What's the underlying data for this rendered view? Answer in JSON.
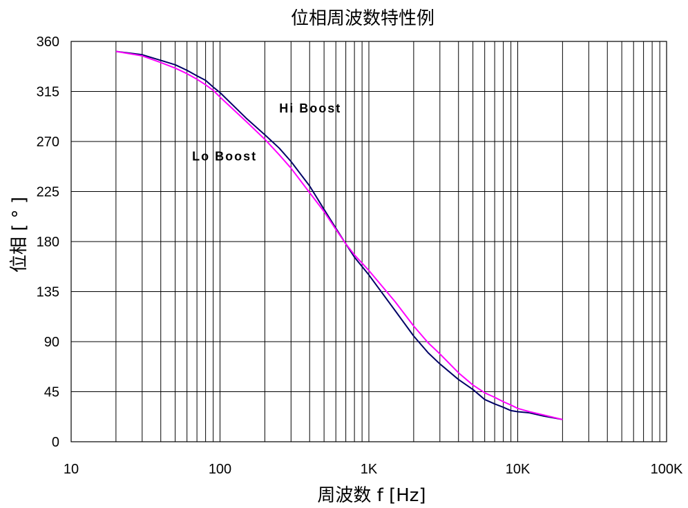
{
  "chart_data": {
    "type": "line",
    "title": "位相周波数特性例",
    "xlabel": "周波数 f [Hz]",
    "ylabel": "位相 [ ° ]",
    "xscale": "log",
    "xlim": [
      10,
      100000
    ],
    "ylim": [
      0,
      360
    ],
    "xticks": [
      {
        "value": 10,
        "label": "10"
      },
      {
        "value": 100,
        "label": "100"
      },
      {
        "value": 1000,
        "label": "1K"
      },
      {
        "value": 10000,
        "label": "10K"
      },
      {
        "value": 100000,
        "label": "100K"
      }
    ],
    "yticks": [
      {
        "value": 0,
        "label": "0"
      },
      {
        "value": 45,
        "label": "45"
      },
      {
        "value": 90,
        "label": "90"
      },
      {
        "value": 135,
        "label": "135"
      },
      {
        "value": 180,
        "label": "180"
      },
      {
        "value": 225,
        "label": "225"
      },
      {
        "value": 270,
        "label": "270"
      },
      {
        "value": 315,
        "label": "315"
      },
      {
        "value": 360,
        "label": "360"
      }
    ],
    "grid": true,
    "annotations": [
      {
        "text": "Hi Boost",
        "x": 250,
        "y": 296
      },
      {
        "text": "Lo Boost",
        "x": 65,
        "y": 253
      }
    ],
    "series": [
      {
        "name": "Hi Boost",
        "color": "#000066",
        "x": [
          20,
          30,
          40,
          50,
          60,
          70,
          80,
          90,
          100,
          150,
          200,
          250,
          300,
          400,
          500,
          600,
          700,
          800,
          1000,
          1500,
          2000,
          2500,
          3000,
          4000,
          5000,
          6000,
          7000,
          8000,
          9000,
          10000,
          12000,
          15000,
          20000
        ],
        "values": [
          351,
          348,
          343,
          339,
          334,
          329,
          325,
          319,
          314,
          291,
          276,
          264,
          252,
          230,
          209,
          192,
          178,
          166,
          150,
          118,
          95,
          80,
          70,
          56,
          47,
          38,
          34,
          31,
          28,
          27,
          26,
          23,
          20
        ]
      },
      {
        "name": "Lo Boost",
        "color": "#ff00ff",
        "x": [
          20,
          30,
          40,
          50,
          60,
          70,
          80,
          90,
          100,
          150,
          200,
          250,
          300,
          400,
          500,
          600,
          700,
          800,
          1000,
          1500,
          2000,
          2500,
          3000,
          4000,
          5000,
          6000,
          7000,
          8000,
          9000,
          10000,
          12000,
          15000,
          20000
        ],
        "values": [
          351,
          347,
          341,
          336,
          331,
          326,
          321,
          316,
          310,
          288,
          272,
          258,
          246,
          224,
          207,
          191,
          178,
          168,
          154,
          126,
          104,
          89,
          79,
          62,
          51,
          44,
          40,
          36,
          33,
          30,
          27,
          24,
          20
        ]
      }
    ]
  }
}
